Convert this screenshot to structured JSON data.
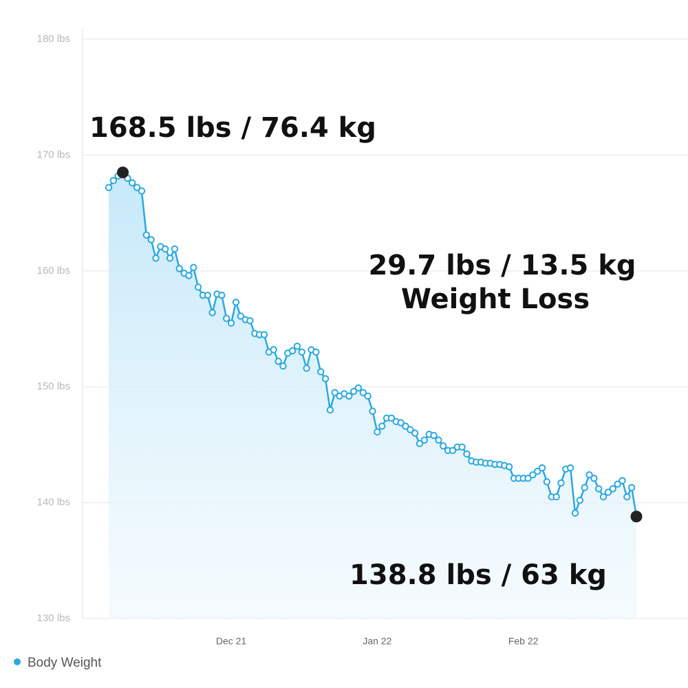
{
  "chart_data": {
    "type": "line",
    "ylim": [
      130,
      180
    ],
    "yticks": [
      {
        "value": 130,
        "label": "130 lbs"
      },
      {
        "value": 140,
        "label": "140 lbs"
      },
      {
        "value": 150,
        "label": "150 lbs"
      },
      {
        "value": 160,
        "label": "160 lbs"
      },
      {
        "value": 170,
        "label": "170 lbs"
      },
      {
        "value": 180,
        "label": "180 lbs"
      }
    ],
    "grid": true,
    "legend": "bottom-left",
    "categories": [
      null,
      null,
      null,
      null,
      null,
      null,
      null,
      null,
      null,
      null,
      null,
      null,
      null,
      null,
      null,
      null,
      null,
      null,
      null,
      null,
      null,
      null,
      null,
      null,
      null,
      null,
      "Dec 21",
      null,
      null,
      null,
      null,
      null,
      null,
      null,
      null,
      null,
      null,
      null,
      null,
      null,
      null,
      null,
      null,
      null,
      null,
      null,
      null,
      null,
      null,
      null,
      null,
      null,
      null,
      null,
      null,
      null,
      null,
      "Jan 22",
      null,
      null,
      null,
      null,
      null,
      null,
      null,
      null,
      null,
      null,
      null,
      null,
      null,
      null,
      null,
      null,
      null,
      null,
      null,
      null,
      null,
      null,
      null,
      null,
      null,
      null,
      null,
      null,
      null,
      null,
      "Feb 22",
      null,
      null,
      null,
      null,
      null,
      null,
      null,
      null,
      null,
      null,
      null,
      null,
      null,
      null,
      null,
      null,
      null,
      null,
      null,
      null,
      null,
      null,
      null,
      null
    ],
    "series": [
      {
        "name": "Body Weight",
        "color": "#29a8e0",
        "values": [
          167.2,
          167.8,
          168.2,
          168.5,
          168.0,
          167.6,
          167.2,
          166.9,
          163.1,
          162.7,
          161.1,
          162.1,
          161.9,
          161.1,
          161.9,
          160.2,
          159.8,
          159.6,
          160.3,
          158.6,
          157.9,
          157.9,
          156.4,
          158.0,
          157.9,
          155.9,
          155.5,
          157.3,
          156.1,
          155.8,
          155.7,
          154.6,
          154.5,
          154.5,
          153.0,
          153.2,
          152.2,
          151.8,
          152.9,
          153.1,
          153.5,
          153.0,
          151.6,
          153.2,
          153.0,
          151.3,
          150.7,
          148.0,
          149.5,
          149.2,
          149.4,
          149.2,
          149.6,
          149.9,
          149.5,
          149.2,
          147.9,
          146.1,
          146.6,
          147.3,
          147.3,
          147.0,
          146.9,
          146.6,
          146.3,
          146.0,
          145.1,
          145.4,
          145.9,
          145.8,
          145.4,
          144.9,
          144.5,
          144.5,
          144.8,
          144.8,
          144.2,
          143.6,
          143.5,
          143.5,
          143.4,
          143.4,
          143.3,
          143.3,
          143.2,
          143.1,
          142.1,
          142.1,
          142.1,
          142.1,
          142.4,
          142.7,
          143.0,
          141.8,
          140.5,
          140.5,
          141.7,
          142.9,
          143.0,
          139.1,
          140.2,
          141.3,
          142.4,
          142.1,
          141.2,
          140.5,
          140.9,
          141.2,
          141.6,
          141.9,
          140.5,
          141.3,
          138.8
        ]
      }
    ],
    "highlight_points": [
      3,
      112
    ],
    "annotations": [
      {
        "text": "168.5 lbs / 76.4 kg"
      },
      {
        "text": "29.7 lbs / 13.5 kg"
      },
      {
        "text": "Weight Loss"
      },
      {
        "text": "138.8 lbs / 63 kg"
      }
    ]
  }
}
